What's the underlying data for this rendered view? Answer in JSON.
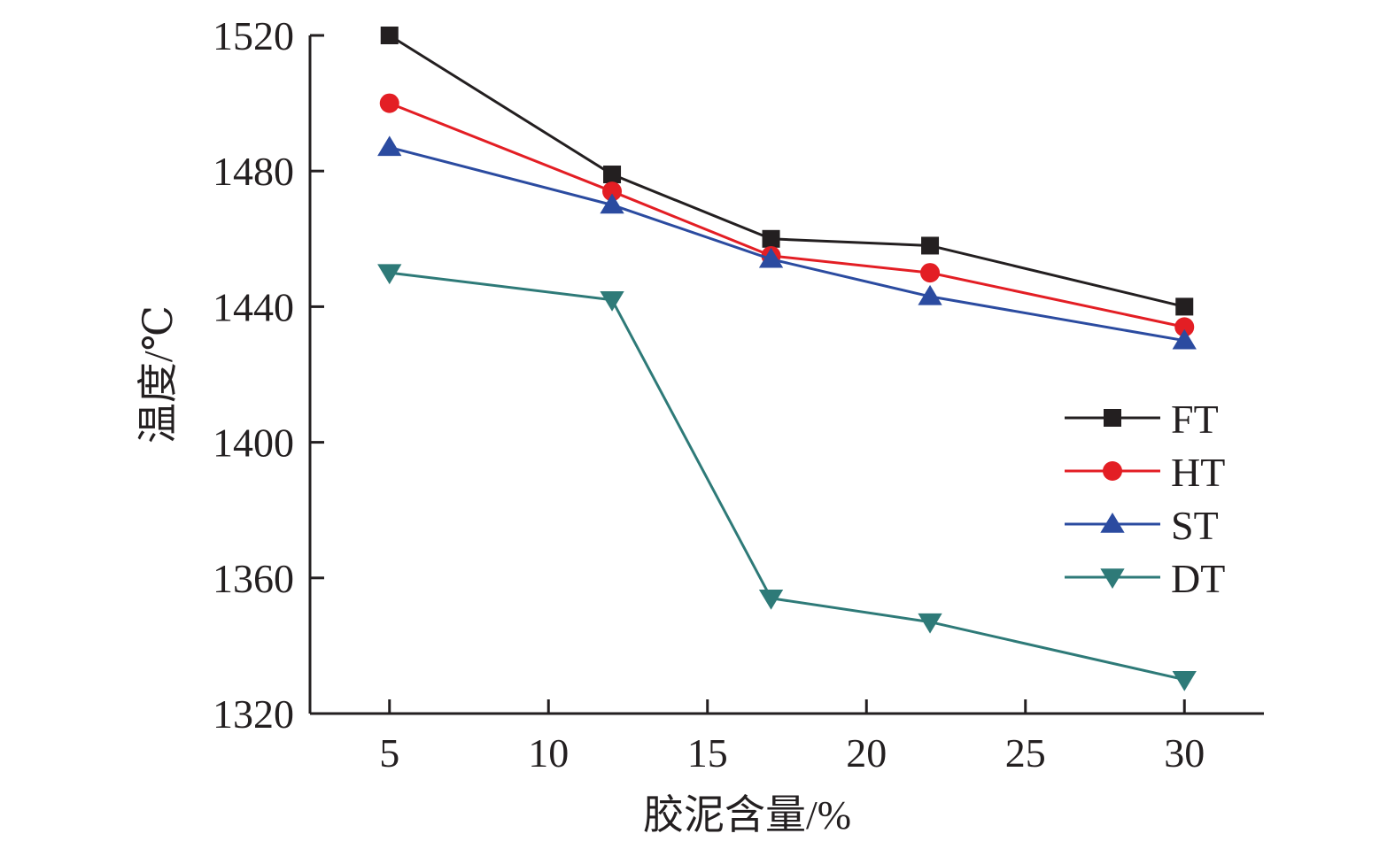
{
  "chart_data": {
    "type": "line",
    "title": "",
    "xlabel": "胶泥含量/%",
    "ylabel": "温度/℃",
    "xlim": [
      2.5,
      32.5
    ],
    "ylim": [
      1320,
      1520
    ],
    "xticks": [
      5,
      10,
      15,
      20,
      25,
      30
    ],
    "yticks": [
      1320,
      1360,
      1400,
      1440,
      1480,
      1520
    ],
    "grid": false,
    "legend_position": "right",
    "x": [
      5,
      12,
      17,
      22,
      30
    ],
    "series": [
      {
        "name": "FT",
        "values": [
          1520,
          1479,
          1460,
          1458,
          1440
        ],
        "color": "#231f20",
        "marker": "square"
      },
      {
        "name": "HT",
        "values": [
          1500,
          1474,
          1455,
          1450,
          1434
        ],
        "color": "#e31e24",
        "marker": "circle"
      },
      {
        "name": "ST",
        "values": [
          1487,
          1470,
          1454,
          1443,
          1430
        ],
        "color": "#2b4ba0",
        "marker": "triangle-up"
      },
      {
        "name": "DT",
        "values": [
          1450,
          1442,
          1354,
          1347,
          1330
        ],
        "color": "#2e7a78",
        "marker": "triangle-down"
      }
    ]
  }
}
